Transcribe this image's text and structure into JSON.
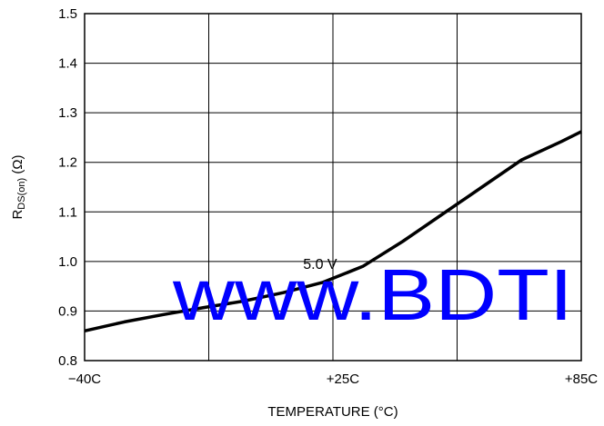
{
  "chart_data": {
    "type": "line",
    "xlabel": "TEMPERATURE (°C)",
    "ylabel": {
      "main": "R",
      "sub": "DS(on)",
      "unit": " (Ω)"
    },
    "x_ticks": [
      {
        "value": -40,
        "label": "−40C"
      },
      {
        "value": 25,
        "label": "+25C"
      },
      {
        "value": 85,
        "label": "+85C"
      }
    ],
    "xlim": [
      -40,
      85
    ],
    "ylim": [
      0.8,
      1.5
    ],
    "y_ticks": [
      "0.8",
      "0.9",
      "1.0",
      "1.1",
      "1.2",
      "1.3",
      "1.4",
      "1.5"
    ],
    "grid": true,
    "series": [
      {
        "name": "5.0 V",
        "color": "#000000",
        "points": [
          [
            -40,
            0.86
          ],
          [
            -30,
            0.878
          ],
          [
            -20,
            0.893
          ],
          [
            -10,
            0.907
          ],
          [
            0,
            0.92
          ],
          [
            10,
            0.937
          ],
          [
            20,
            0.958
          ],
          [
            30,
            0.99
          ],
          [
            40,
            1.04
          ],
          [
            50,
            1.095
          ],
          [
            60,
            1.15
          ],
          [
            70,
            1.205
          ],
          [
            80,
            1.242
          ],
          [
            85,
            1.262
          ]
        ]
      }
    ],
    "annotations": [
      {
        "text": "5.0 V",
        "x": 15,
        "y": 0.985
      }
    ],
    "watermark": {
      "text": "www.BDTI",
      "color": "#0000ff"
    }
  }
}
